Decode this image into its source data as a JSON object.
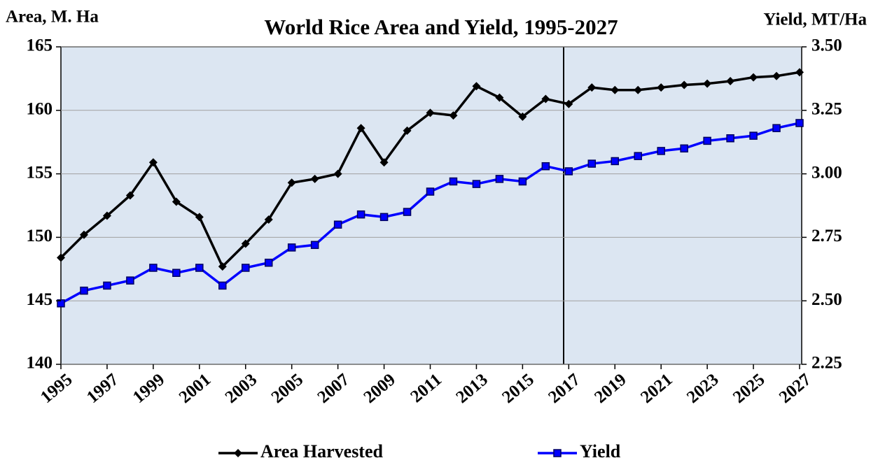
{
  "chart_data": {
    "type": "line",
    "title": "World Rice Area and Yield, 1995-2027",
    "y_label": "Area, M. Ha",
    "y2_label": "Yield, MT/Ha",
    "x": [
      1995,
      1996,
      1997,
      1998,
      1999,
      2000,
      2001,
      2002,
      2003,
      2004,
      2005,
      2006,
      2007,
      2008,
      2009,
      2010,
      2011,
      2012,
      2013,
      2014,
      2015,
      2016,
      2017,
      2018,
      2019,
      2020,
      2021,
      2022,
      2023,
      2024,
      2025,
      2026,
      2027
    ],
    "xlim": [
      1995,
      2027
    ],
    "xticks": [
      1995,
      1997,
      1999,
      2001,
      2003,
      2005,
      2007,
      2009,
      2011,
      2013,
      2015,
      2017,
      2019,
      2021,
      2023,
      2025,
      2027
    ],
    "ylim": [
      140,
      165
    ],
    "yticks": [
      140,
      145,
      150,
      155,
      160,
      165
    ],
    "y2lim": [
      2.25,
      3.5
    ],
    "y2ticks": [
      {
        "value": 2.25,
        "label": "2.25"
      },
      {
        "value": 2.5,
        "label": "2.50"
      },
      {
        "value": 2.75,
        "label": "2.75"
      },
      {
        "value": 3.0,
        "label": "3.00"
      },
      {
        "value": 3.25,
        "label": "3.25"
      },
      {
        "value": 3.5,
        "label": "3.50"
      }
    ],
    "grid": true,
    "legend": "bottom",
    "series": [
      {
        "name": "Area Harvested",
        "color": "#000000",
        "marker": "diamond",
        "values": [
          148.4,
          150.2,
          151.7,
          153.3,
          155.9,
          152.8,
          151.6,
          147.7,
          149.5,
          151.4,
          154.3,
          154.6,
          155.0,
          158.6,
          155.9,
          158.4,
          159.8,
          159.6,
          161.9,
          161.0,
          159.5,
          160.9,
          160.5,
          161.8,
          161.6,
          161.6,
          161.8,
          162.0,
          162.1,
          162.3,
          162.6,
          162.7,
          163.0
        ]
      },
      {
        "name": "Yield",
        "color": "#0000ff",
        "marker": "square",
        "axis": "y2",
        "values": [
          2.49,
          2.54,
          2.56,
          2.58,
          2.63,
          2.61,
          2.63,
          2.56,
          2.63,
          2.65,
          2.71,
          2.72,
          2.8,
          2.84,
          2.83,
          2.85,
          2.93,
          2.97,
          2.96,
          2.98,
          2.97,
          3.03,
          3.01,
          3.04,
          3.05,
          3.07,
          3.09,
          3.1,
          3.13,
          3.14,
          3.15,
          3.18,
          3.2
        ]
      }
    ]
  }
}
